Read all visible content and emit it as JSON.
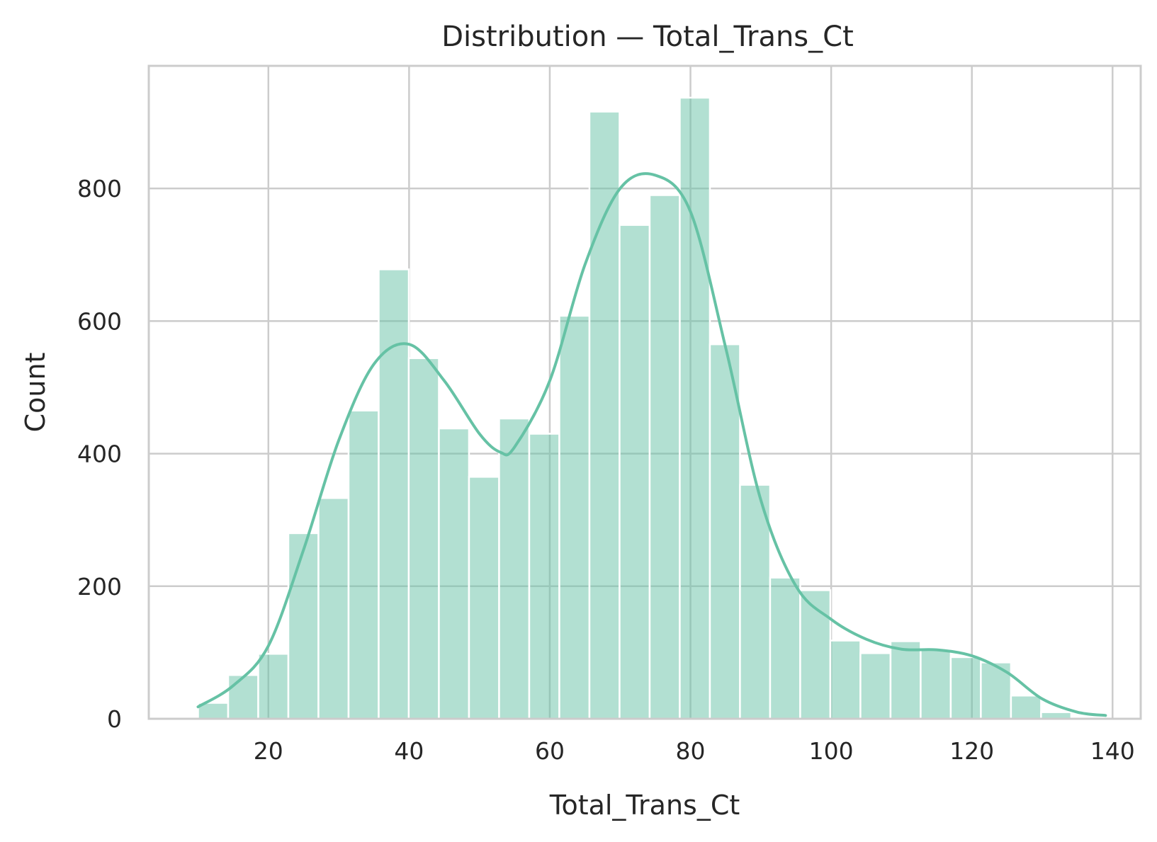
{
  "chart_data": {
    "type": "histogram",
    "title": "Distribution — Total_Trans_Ct",
    "xlabel": "Total_Trans_Ct",
    "ylabel": "Count",
    "xlim": [
      3,
      144
    ],
    "ylim": [
      0,
      985
    ],
    "x_ticks": [
      20,
      40,
      60,
      80,
      100,
      120,
      140
    ],
    "y_ticks": [
      0,
      200,
      400,
      600,
      800
    ],
    "grid": true,
    "colors": {
      "bar": "#66c2a5",
      "bar_opacity": 0.5,
      "kde": "#66c2a5",
      "grid": "#cccccc",
      "text": "#262626"
    },
    "bins": {
      "start": 10,
      "width": 4.28,
      "counts": [
        24,
        66,
        98,
        280,
        333,
        465,
        678,
        544,
        438,
        365,
        453,
        430,
        608,
        916,
        745,
        790,
        937,
        565,
        353,
        213,
        194,
        118,
        99,
        117,
        104,
        93,
        85,
        35,
        10
      ]
    },
    "kde": {
      "x": [
        10,
        15,
        20,
        25,
        30,
        35,
        40,
        45,
        50,
        53,
        55,
        60,
        65,
        70,
        75,
        80,
        85,
        90,
        95,
        100,
        105,
        110,
        115,
        120,
        125,
        130,
        135,
        139
      ],
      "y": [
        18,
        50,
        110,
        255,
        420,
        535,
        565,
        510,
        430,
        402,
        410,
        510,
        685,
        800,
        820,
        765,
        560,
        330,
        200,
        150,
        120,
        105,
        104,
        95,
        70,
        30,
        10,
        5
      ]
    }
  }
}
